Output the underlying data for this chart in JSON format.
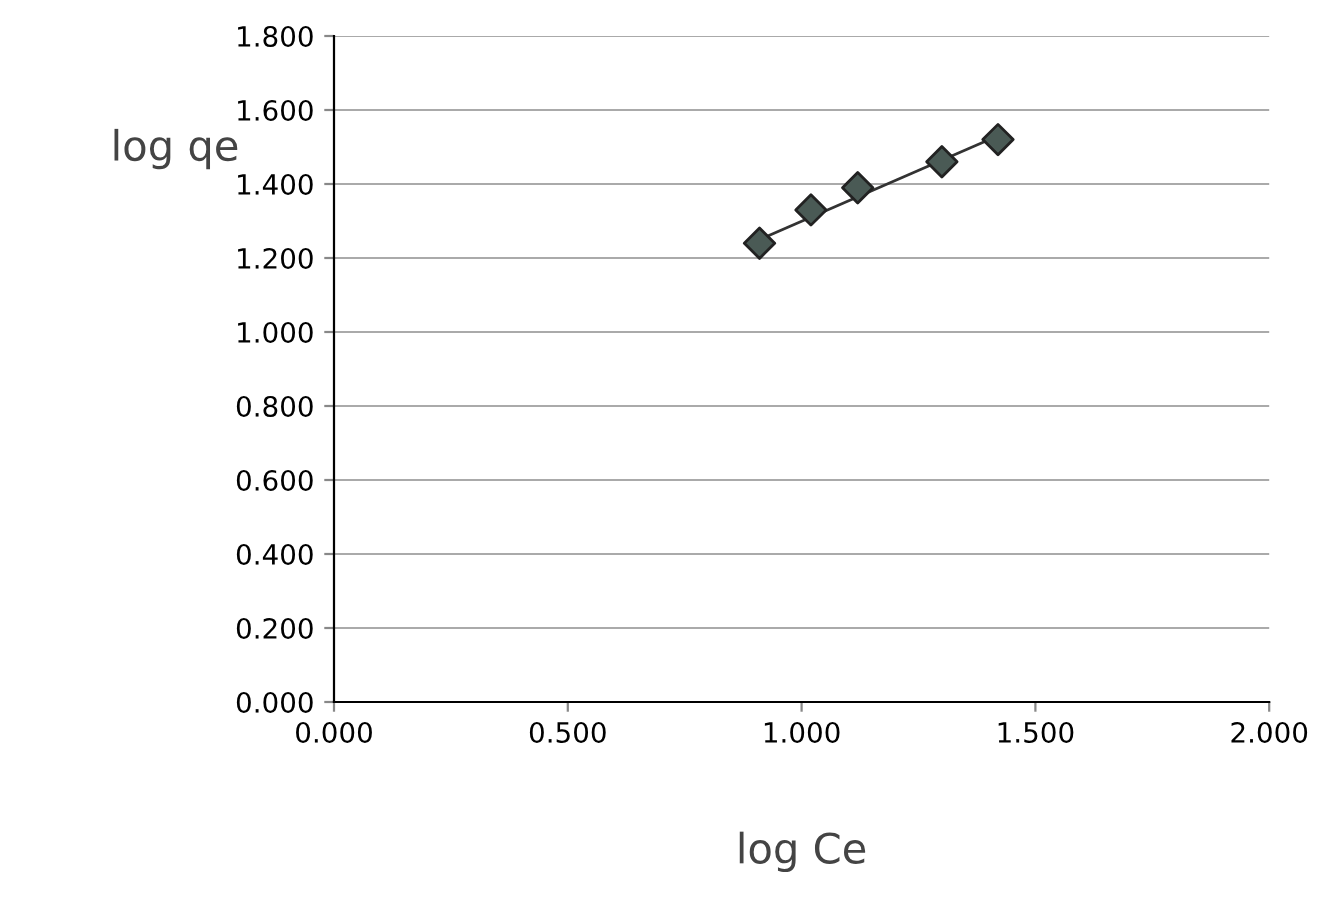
{
  "chart_data": {
    "type": "scatter",
    "xlabel": "log Ce",
    "ylabel": "log qe",
    "xlim": [
      0,
      2
    ],
    "xticks": [
      {
        "value": 0,
        "label": "0.000"
      },
      {
        "value": 0.5,
        "label": "0.500"
      },
      {
        "value": 1,
        "label": "1.000"
      },
      {
        "value": 1.5,
        "label": "1.500"
      },
      {
        "value": 2,
        "label": "2.000"
      }
    ],
    "ylim": [
      0,
      1.8
    ],
    "yticks": [
      {
        "value": 0,
        "label": "0.000"
      },
      {
        "value": 0.2,
        "label": "0.200"
      },
      {
        "value": 0.4,
        "label": "0.400"
      },
      {
        "value": 0.6,
        "label": "0.600"
      },
      {
        "value": 0.8,
        "label": "0.800"
      },
      {
        "value": 1,
        "label": "1.000"
      },
      {
        "value": 1.2,
        "label": "1.200"
      },
      {
        "value": 1.4,
        "label": "1.400"
      },
      {
        "value": 1.6,
        "label": "1.600"
      },
      {
        "value": 1.8,
        "label": "1.800"
      }
    ],
    "grid": "y",
    "series": [
      {
        "marker": "diamond",
        "color": "#4a5a55",
        "x": [
          0.91,
          1.02,
          1.12,
          1.3,
          1.42
        ],
        "values": [
          1.24,
          1.33,
          1.39,
          1.46,
          1.52
        ]
      },
      {
        "type": "line",
        "color": "#333333",
        "x": [
          0.91,
          1.42
        ],
        "values": [
          1.25,
          1.53
        ]
      }
    ]
  }
}
